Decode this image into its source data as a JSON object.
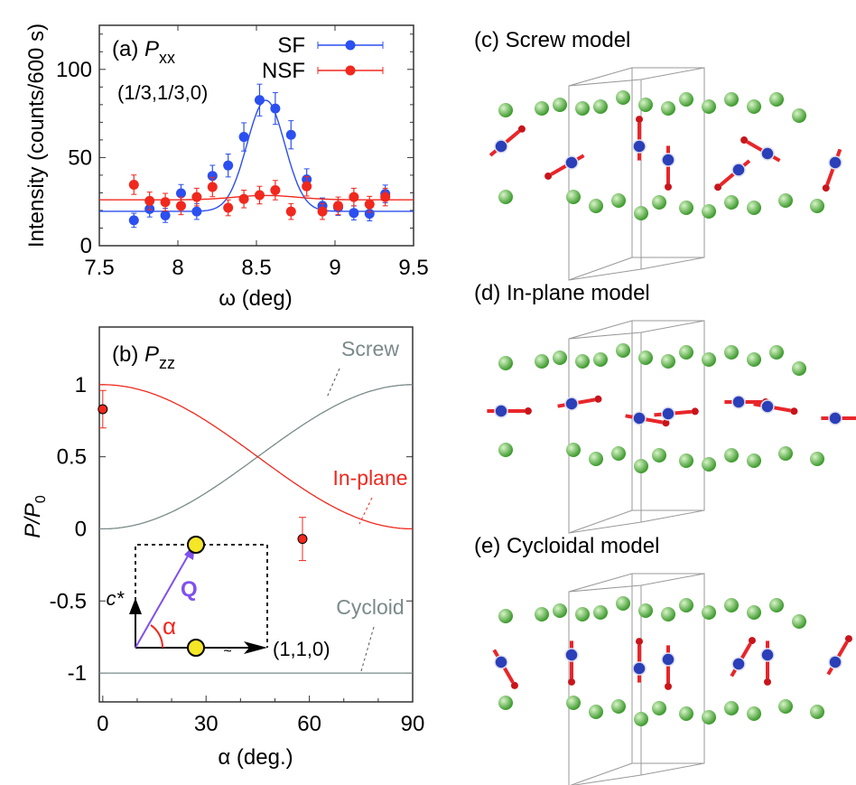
{
  "chart_data": [
    {
      "type": "scatter",
      "panel_label": "(a)",
      "title_symbol": "P",
      "title_sub": "xx",
      "annotation": "(1/3,1/3,0)",
      "xlabel": "ω (deg)",
      "ylabel": "Intensity (counts/600 s)",
      "xlim": [
        7.5,
        9.5
      ],
      "ylim": [
        0,
        125
      ],
      "xticks": [
        "7.5",
        "8",
        "8.5",
        "9",
        "9.5"
      ],
      "yticks": [
        "0",
        "50",
        "100"
      ],
      "legend_position": "top-right",
      "x": [
        7.72,
        7.82,
        7.92,
        8.02,
        8.12,
        8.22,
        8.32,
        8.42,
        8.52,
        8.62,
        8.72,
        8.82,
        8.92,
        9.02,
        9.12,
        9.22,
        9.32
      ],
      "series": [
        {
          "name": "SF",
          "color": "#2b4ff0",
          "values": [
            14.4,
            20.8,
            17.2,
            29.7,
            19.4,
            39.6,
            45.5,
            61.7,
            82.6,
            77.8,
            62.9,
            37.6,
            22.6,
            21.7,
            18.6,
            18.1,
            29.4
          ],
          "errors": [
            4,
            4.5,
            4,
            5,
            4.5,
            6,
            6.5,
            8,
            9,
            9,
            8,
            6,
            4.5,
            4.5,
            4,
            4,
            5
          ],
          "fit": {
            "type": "gaussian",
            "baseline": 19.5,
            "amplitude": 63,
            "center": 8.56,
            "sigma": 0.12
          }
        },
        {
          "name": "NSF",
          "color": "#f0281e",
          "values": [
            34.6,
            25.4,
            24.7,
            22.6,
            27.6,
            33.3,
            21.5,
            26.5,
            28.7,
            31.5,
            19.4,
            33.7,
            19.4,
            22.6,
            27.6,
            23.5,
            27.6
          ],
          "errors": [
            5.5,
            5,
            5,
            5,
            5,
            5.5,
            4.5,
            5,
            5,
            5.5,
            4.5,
            5.5,
            4.5,
            5,
            5,
            4.5,
            5
          ],
          "fit": {
            "type": "gaussian",
            "baseline": 26,
            "amplitude": 2.5,
            "center": 8.56,
            "sigma": 0.2
          }
        }
      ]
    },
    {
      "type": "line",
      "panel_label": "(b)",
      "title_symbol": "P",
      "title_sub": "zz",
      "xlabel": "α (deg.)",
      "ylabel_main": "P/P",
      "ylabel_sub": "0",
      "xlim": [
        -1,
        90
      ],
      "ylim": [
        -1.2,
        1.4
      ],
      "xticks": [
        "0",
        "30",
        "60",
        "90"
      ],
      "yticks": [
        "1",
        "0.5",
        "0",
        "-0.5",
        "-1"
      ],
      "series": [
        {
          "name": "Screw",
          "color": "#7a8a8a",
          "formula": "sin^2(alpha)"
        },
        {
          "name": "In-plane",
          "color": "#f0281e",
          "formula": "cos^2(alpha)"
        },
        {
          "name": "Cycloid",
          "color": "#7a8a8a",
          "formula": "-1"
        }
      ],
      "points": {
        "x": [
          0,
          58
        ],
        "y": [
          0.83,
          -0.07
        ],
        "errors": [
          0.13,
          0.15
        ],
        "color": "#f0281e"
      },
      "inset": {
        "vertical_label": "c*",
        "vector_label": "Q",
        "angle_label": "α",
        "horizontal_label": "(1,1,0)",
        "vector_color": "#8050ee",
        "spot_color": "#f5e627"
      }
    }
  ],
  "models": [
    {
      "label": "(c) Screw model",
      "type": "screw"
    },
    {
      "label": "(d) In-plane model",
      "type": "inplane"
    },
    {
      "label": "(e) Cycloidal model",
      "type": "cycloid"
    }
  ]
}
